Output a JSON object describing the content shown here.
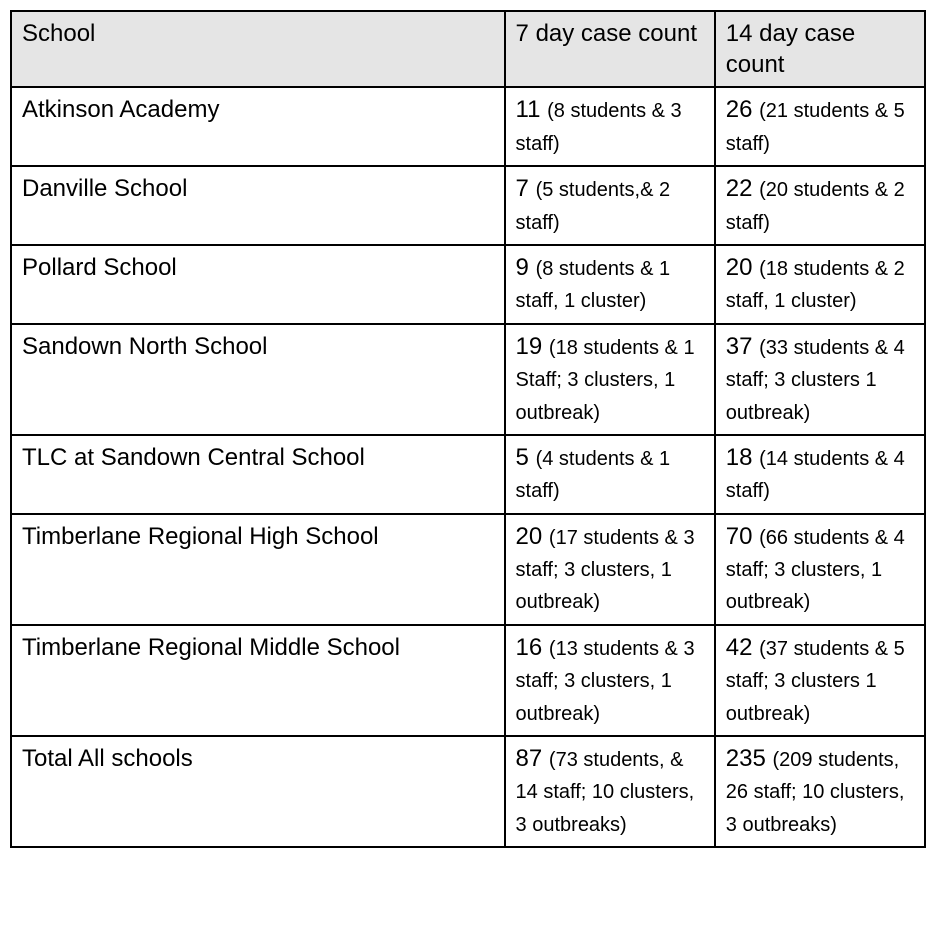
{
  "table": {
    "type": "table",
    "header_background": "#e5e5e5",
    "border_color": "#000000",
    "border_width": 2,
    "main_fontsize": 24,
    "detail_fontsize": 20,
    "column_widths_pct": [
      54,
      23,
      23
    ],
    "columns": [
      "School",
      "7 day case count",
      "14 day case count"
    ],
    "rows": [
      {
        "school": "Atkinson Academy",
        "day7_count": "11",
        "day7_detail": "(8 students & 3 staff)",
        "day14_count": "26",
        "day14_detail": "(21 students & 5 staff)"
      },
      {
        "school": "Danville School",
        "day7_count": "7",
        "day7_detail": "(5 students,& 2 staff)",
        "day14_count": "22",
        "day14_detail": "(20 students & 2 staff)"
      },
      {
        "school": "Pollard School",
        "day7_count": "9",
        "day7_detail": "(8 students & 1 staff, 1 cluster)",
        "day14_count": "20",
        "day14_detail": "(18 students & 2 staff, 1 cluster)"
      },
      {
        "school": "Sandown North School",
        "day7_count": "19",
        "day7_detail": "(18 students & 1 Staff; 3 clusters, 1 outbreak)",
        "day14_count": "37",
        "day14_detail": "(33 students & 4 staff; 3 clusters 1 outbreak)"
      },
      {
        "school": "TLC at Sandown Central School",
        "day7_count": "5",
        "day7_detail": "(4 students & 1 staff)",
        "day14_count": "18",
        "day14_detail": "(14 students & 4 staff)"
      },
      {
        "school": "Timberlane Regional High School",
        "day7_count": "20",
        "day7_detail": "(17 students & 3 staff; 3 clusters, 1 outbreak)",
        "day14_count": "70",
        "day14_detail": "(66 students & 4 staff; 3 clusters, 1 outbreak)"
      },
      {
        "school": "Timberlane Regional Middle School",
        "day7_count": "16",
        "day7_detail": "(13 students & 3 staff; 3 clusters, 1 outbreak)",
        "day14_count": "42",
        "day14_detail": "(37 students & 5 staff; 3 clusters 1 outbreak)"
      },
      {
        "school": "Total All schools",
        "day7_count": "87",
        "day7_detail": "(73 students, & 14 staff; 10 clusters, 3 outbreaks)",
        "day14_count": "235",
        "day14_detail": "(209 students, 26 staff; 10 clusters, 3 outbreaks)"
      }
    ]
  }
}
